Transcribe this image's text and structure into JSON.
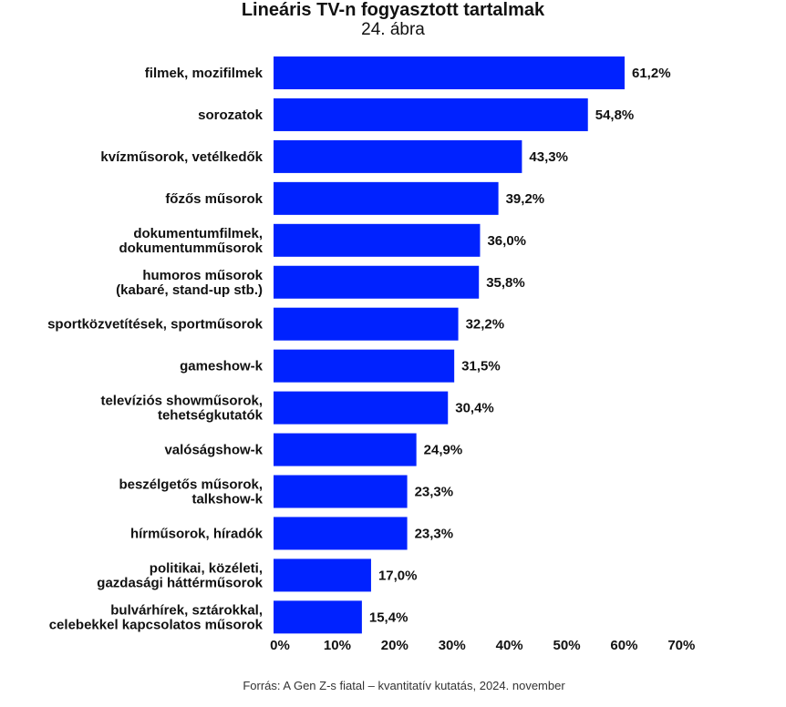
{
  "chart_data": {
    "type": "bar",
    "orientation": "horizontal",
    "title": "Lineáris TV-n fogyasztott tartalmak",
    "subtitle": "24. ábra",
    "source": "Forrás: A Gen Z-s fiatal – kvantitatív kutatás, 2024. november",
    "categories": [
      [
        "filmek, mozifilmek"
      ],
      [
        "sorozatok"
      ],
      [
        "kvízműsorok, vetélkedők"
      ],
      [
        "főzős műsorok"
      ],
      [
        "dokumentumfilmek,",
        "dokumentumműsorok"
      ],
      [
        "humoros műsorok",
        "(kabaré, stand-up stb.)"
      ],
      [
        "sportközvetítések, sportműsorok"
      ],
      [
        "gameshow-k"
      ],
      [
        "televíziós showműsorok,",
        "tehetségkutatók"
      ],
      [
        "valóságshow-k"
      ],
      [
        "beszélgetős műsorok,",
        "talkshow-k"
      ],
      [
        "hírműsorok, híradók"
      ],
      [
        "politikai, közéleti,",
        "gazdasági háttérműsorok"
      ],
      [
        "bulvárhírek, sztárokkal,",
        "celebekkel kapcsolatos műsorok"
      ]
    ],
    "values": [
      61.2,
      54.8,
      43.3,
      39.2,
      36.0,
      35.8,
      32.2,
      31.5,
      30.4,
      24.9,
      23.3,
      23.3,
      17.0,
      15.4
    ],
    "value_labels": [
      "61,2%",
      "54,8%",
      "43,3%",
      "39,2%",
      "36,0%",
      "35,8%",
      "32,2%",
      "31,5%",
      "30,4%",
      "24,9%",
      "23,3%",
      "23,3%",
      "17,0%",
      "15,4%"
    ],
    "xlim": [
      0,
      70
    ],
    "x_ticks": [
      0,
      10,
      20,
      30,
      40,
      50,
      60,
      70
    ],
    "x_tick_labels": [
      "0%",
      "10%",
      "20%",
      "30%",
      "40%",
      "50%",
      "60%",
      "70%"
    ],
    "grid": false,
    "legend": "none",
    "bar_color": "#0022ff"
  }
}
